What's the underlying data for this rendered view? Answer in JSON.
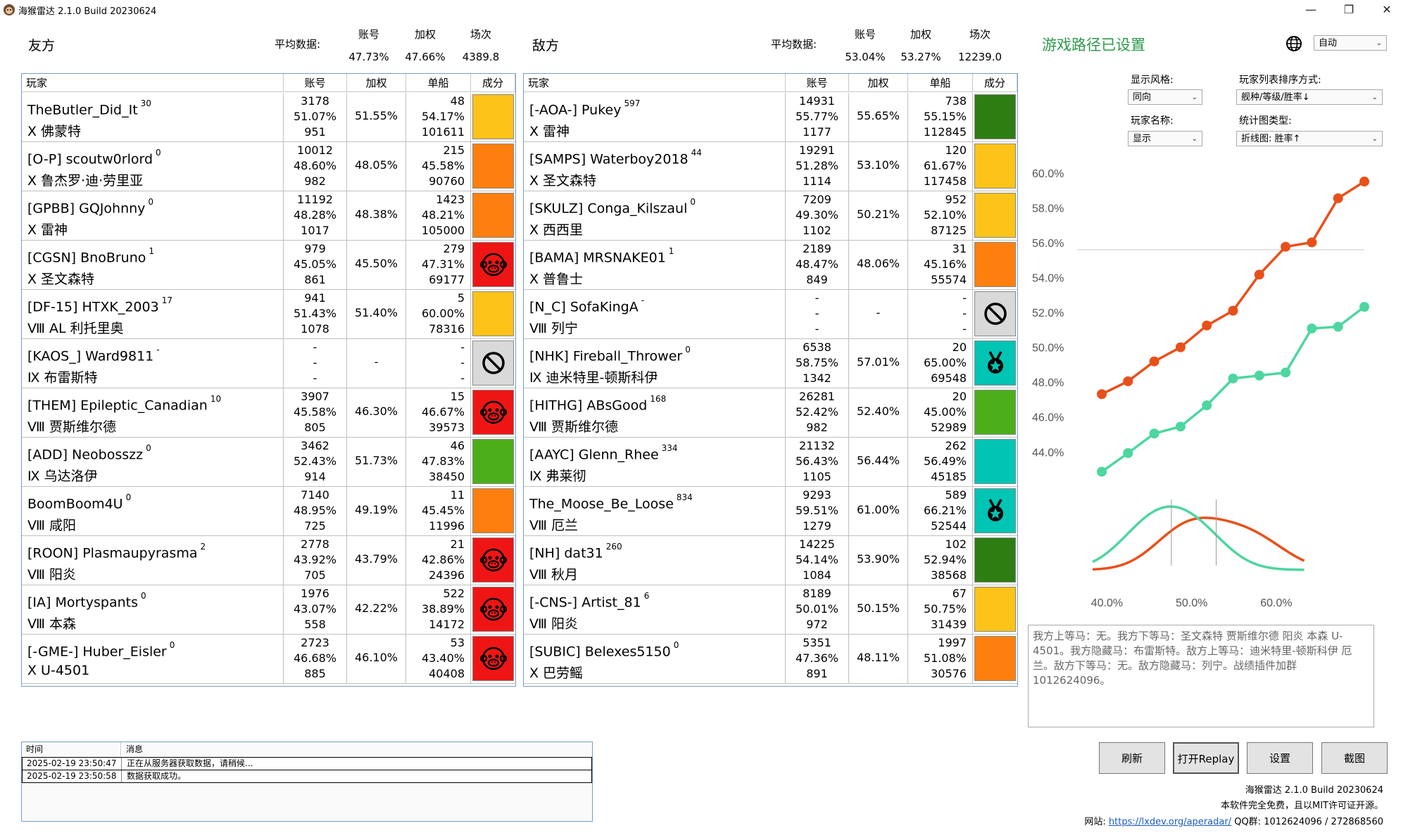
{
  "window": {
    "title": "海猴雷达 2.1.0 Build 20230624"
  },
  "friendly": {
    "label": "友方",
    "avg_label": "平均数据:",
    "avg_headers": [
      "账号",
      "加权",
      "场次"
    ],
    "avg_values": [
      "47.73%",
      "47.66%",
      "4389.8"
    ]
  },
  "enemy": {
    "label": "敌方",
    "avg_label": "平均数据:",
    "avg_headers": [
      "账号",
      "加权",
      "场次"
    ],
    "avg_values": [
      "53.04%",
      "53.27%",
      "12239.0"
    ]
  },
  "table_headers": {
    "player": "玩家",
    "account": "账号",
    "weighted": "加权",
    "ship": "单船",
    "composition": "成分"
  },
  "friendly_players": [
    {
      "name": "TheButler_Did_It",
      "sup": "30",
      "ship": "Ⅹ 佛蒙特",
      "acc": [
        "3178",
        "51.07%",
        "951"
      ],
      "weighted": "51.55%",
      "shipstats": [
        "48",
        "54.17%",
        "101611"
      ],
      "color": "#fcc419",
      "icon": ""
    },
    {
      "name": "[O-P] scoutw0rlord",
      "sup": "0",
      "ship": "Ⅹ 鲁杰罗·迪·劳里亚",
      "acc": [
        "10012",
        "48.60%",
        "982"
      ],
      "weighted": "48.05%",
      "shipstats": [
        "215",
        "45.58%",
        "90760"
      ],
      "color": "#ff7f0e",
      "icon": ""
    },
    {
      "name": "[GPBB] GQJohnny",
      "sup": "0",
      "ship": "Ⅹ 雷神",
      "acc": [
        "11192",
        "48.28%",
        "1017"
      ],
      "weighted": "48.38%",
      "shipstats": [
        "1423",
        "48.21%",
        "105000"
      ],
      "color": "#ff7f0e",
      "icon": ""
    },
    {
      "name": "[CGSN] BnoBruno",
      "sup": "1",
      "ship": "Ⅹ 圣文森特",
      "acc": [
        "979",
        "45.05%",
        "861"
      ],
      "weighted": "45.50%",
      "shipstats": [
        "279",
        "47.31%",
        "69177"
      ],
      "color": "#f01515",
      "icon": "monkey-icon"
    },
    {
      "name": "[DF-15] HTXK_2003",
      "sup": "17",
      "ship": "Ⅷ AL 利托里奥",
      "acc": [
        "941",
        "51.43%",
        "1078"
      ],
      "weighted": "51.40%",
      "shipstats": [
        "5",
        "60.00%",
        "78316"
      ],
      "color": "#fcc419",
      "icon": ""
    },
    {
      "name": "[KAOS_] Ward9811",
      "sup": "-",
      "ship": "Ⅸ 布雷斯特",
      "acc": [
        "-",
        "-",
        "-"
      ],
      "weighted": "-",
      "shipstats": [
        "-",
        "-",
        "-"
      ],
      "color": "#d9d9d9",
      "icon": "ban-icon"
    },
    {
      "name": "[THEM] Epileptic_Canadian",
      "sup": "10",
      "ship": "Ⅷ 贾斯维尔德",
      "acc": [
        "3907",
        "45.58%",
        "805"
      ],
      "weighted": "46.30%",
      "shipstats": [
        "15",
        "46.67%",
        "39573"
      ],
      "color": "#f01515",
      "icon": "monkey-icon"
    },
    {
      "name": "[ADD] Neobosszz",
      "sup": "0",
      "ship": "Ⅸ 乌达洛伊",
      "acc": [
        "3462",
        "52.43%",
        "914"
      ],
      "weighted": "51.73%",
      "shipstats": [
        "46",
        "47.83%",
        "38450"
      ],
      "color": "#4caf1a",
      "icon": ""
    },
    {
      "name": "BoomBoom4U",
      "sup": "0",
      "ship": "Ⅷ 咸阳",
      "acc": [
        "7140",
        "48.95%",
        "725"
      ],
      "weighted": "49.19%",
      "shipstats": [
        "11",
        "45.45%",
        "11996"
      ],
      "color": "#ff7f0e",
      "icon": ""
    },
    {
      "name": "[ROON] Plasmaupyrasma",
      "sup": "2",
      "ship": "Ⅷ 阳炎",
      "acc": [
        "2778",
        "43.92%",
        "705"
      ],
      "weighted": "43.79%",
      "shipstats": [
        "21",
        "42.86%",
        "24396"
      ],
      "color": "#f01515",
      "icon": "monkey-icon"
    },
    {
      "name": "[IA] Mortyspants",
      "sup": "0",
      "ship": "Ⅷ 本森",
      "acc": [
        "1976",
        "43.07%",
        "558"
      ],
      "weighted": "42.22%",
      "shipstats": [
        "522",
        "38.89%",
        "14172"
      ],
      "color": "#f01515",
      "icon": "monkey-icon"
    },
    {
      "name": "[-GME-] Huber_Eisler",
      "sup": "0",
      "ship": "Ⅹ U-4501",
      "acc": [
        "2723",
        "46.68%",
        "885"
      ],
      "weighted": "46.10%",
      "shipstats": [
        "53",
        "43.40%",
        "40408"
      ],
      "color": "#f01515",
      "icon": "monkey-icon"
    }
  ],
  "enemy_players": [
    {
      "name": "[-AOA-] Pukey",
      "sup": "597",
      "ship": "Ⅹ 雷神",
      "acc": [
        "14931",
        "55.77%",
        "1177"
      ],
      "weighted": "55.65%",
      "shipstats": [
        "738",
        "55.15%",
        "112845"
      ],
      "color": "#2e7d12",
      "icon": ""
    },
    {
      "name": "[SAMPS] Waterboy2018",
      "sup": "44",
      "ship": "Ⅹ 圣文森特",
      "acc": [
        "19291",
        "51.28%",
        "1114"
      ],
      "weighted": "53.10%",
      "shipstats": [
        "120",
        "61.67%",
        "117458"
      ],
      "color": "#fcc419",
      "icon": ""
    },
    {
      "name": "[SKULZ] Conga_Kilszaul",
      "sup": "0",
      "ship": "Ⅹ 西西里",
      "acc": [
        "7209",
        "49.30%",
        "1102"
      ],
      "weighted": "50.21%",
      "shipstats": [
        "952",
        "52.10%",
        "87125"
      ],
      "color": "#fcc419",
      "icon": ""
    },
    {
      "name": "[BAMA] MRSNAKE01",
      "sup": "1",
      "ship": "Ⅹ 普鲁士",
      "acc": [
        "2189",
        "48.47%",
        "849"
      ],
      "weighted": "48.06%",
      "shipstats": [
        "31",
        "45.16%",
        "55574"
      ],
      "color": "#ff7f0e",
      "icon": ""
    },
    {
      "name": "[N_C] SofaKingA",
      "sup": "-",
      "ship": "Ⅷ 列宁",
      "acc": [
        "-",
        "-",
        "-"
      ],
      "weighted": "-",
      "shipstats": [
        "-",
        "-",
        "-"
      ],
      "color": "#d9d9d9",
      "icon": "ban-icon"
    },
    {
      "name": "[NHK] Fireball_Thrower",
      "sup": "0",
      "ship": "Ⅸ 迪米特里-顿斯科伊",
      "acc": [
        "6538",
        "58.75%",
        "1342"
      ],
      "weighted": "57.01%",
      "shipstats": [
        "20",
        "65.00%",
        "69548"
      ],
      "color": "#00c4b4",
      "icon": "medal-icon"
    },
    {
      "name": "[HITHG] ABsGood",
      "sup": "168",
      "ship": "Ⅷ 贾斯维尔德",
      "acc": [
        "26281",
        "52.42%",
        "982"
      ],
      "weighted": "52.40%",
      "shipstats": [
        "20",
        "45.00%",
        "52989"
      ],
      "color": "#4caf1a",
      "icon": ""
    },
    {
      "name": "[AAYC] Glenn_Rhee",
      "sup": "334",
      "ship": "Ⅸ 弗莱彻",
      "acc": [
        "21132",
        "56.43%",
        "1105"
      ],
      "weighted": "56.44%",
      "shipstats": [
        "262",
        "56.49%",
        "45185"
      ],
      "color": "#00c4b4",
      "icon": ""
    },
    {
      "name": "The_Moose_Be_Loose",
      "sup": "834",
      "ship": "Ⅷ 厄兰",
      "acc": [
        "9293",
        "59.51%",
        "1279"
      ],
      "weighted": "61.00%",
      "shipstats": [
        "589",
        "66.21%",
        "52544"
      ],
      "color": "#00c4b4",
      "icon": "medal-icon"
    },
    {
      "name": "[NH] dat31",
      "sup": "260",
      "ship": "Ⅷ 秋月",
      "acc": [
        "14225",
        "54.14%",
        "1084"
      ],
      "weighted": "53.90%",
      "shipstats": [
        "102",
        "52.94%",
        "38568"
      ],
      "color": "#2e7d12",
      "icon": ""
    },
    {
      "name": "[-CNS-] Artist_81",
      "sup": "6",
      "ship": "Ⅷ 阳炎",
      "acc": [
        "8189",
        "50.01%",
        "972"
      ],
      "weighted": "50.15%",
      "shipstats": [
        "67",
        "50.75%",
        "31439"
      ],
      "color": "#fcc419",
      "icon": ""
    },
    {
      "name": "[SUBIC] Belexes5150",
      "sup": "0",
      "ship": "Ⅹ 巴劳鳐",
      "acc": [
        "5351",
        "47.36%",
        "891"
      ],
      "weighted": "48.11%",
      "shipstats": [
        "1997",
        "51.08%",
        "30576"
      ],
      "color": "#ff7f0e",
      "icon": ""
    }
  ],
  "right_panel": {
    "status": "游戏路径已设置",
    "lang_value": "自动",
    "style_label": "显示风格:",
    "style_value": "同向",
    "sort_label": "玩家列表排序方式:",
    "sort_value": "舰种/等级/胜率↓",
    "name_label": "玩家名称:",
    "name_value": "显示",
    "chart_type_label": "统计图类型:",
    "chart_type_value": "折线图: 胜率↑",
    "summary": "我方上等马：无。我方下等马：圣文森特 贾斯维尔德 阳炎 本森 U-4501。我方隐藏马：布雷斯特。敌方上等马：迪米特里-顿斯科伊 厄兰。敌方下等马：无。敌方隐藏马：列宁。战绩插件加群1012624096。",
    "buttons": [
      "刷新",
      "打开Replay",
      "设置",
      "截图"
    ],
    "footer_line1": "海猴雷达 2.1.0 Build 20230624",
    "footer_line2": "本软件完全免费，且以MIT许可证开源。",
    "footer_site_label": "网站:",
    "footer_site_link": "https://lxdev.org/aperadar/",
    "footer_qq": "QQ群: 1012624096 / 272868560"
  },
  "log": {
    "headers": [
      "时间",
      "消息"
    ],
    "rows": [
      {
        "time": "2025-02-19 23:50:47",
        "msg": "正在从服务器获取数据，请稍候..."
      },
      {
        "time": "2025-02-19 23:50:58",
        "msg": "数据获取成功。"
      }
    ]
  },
  "colors": {
    "enemy_line": "#e8501a",
    "friendly_line": "#4dd6a0"
  },
  "chart_data": {
    "type": "line",
    "yticks": [
      "60.0%",
      "58.0%",
      "56.0%",
      "54.0%",
      "52.0%",
      "50.0%",
      "48.0%",
      "46.0%",
      "44.0%"
    ],
    "ylim": [
      42.8,
      60.4
    ],
    "series": [
      {
        "values": [
          47.31,
          48.05,
          49.19,
          50.0,
          51.25,
          52.1,
          54.17,
          55.77,
          56.02,
          58.55,
          59.51
        ]
      },
      {
        "values": [
          42.86,
          43.93,
          45.05,
          45.45,
          46.67,
          48.21,
          48.38,
          48.55,
          51.08,
          51.18,
          52.32
        ]
      }
    ],
    "dist_xticks": [
      "40.0%",
      "50.0%",
      "60.0%"
    ],
    "dist_xlim": [
      38.3,
      63.5
    ]
  }
}
